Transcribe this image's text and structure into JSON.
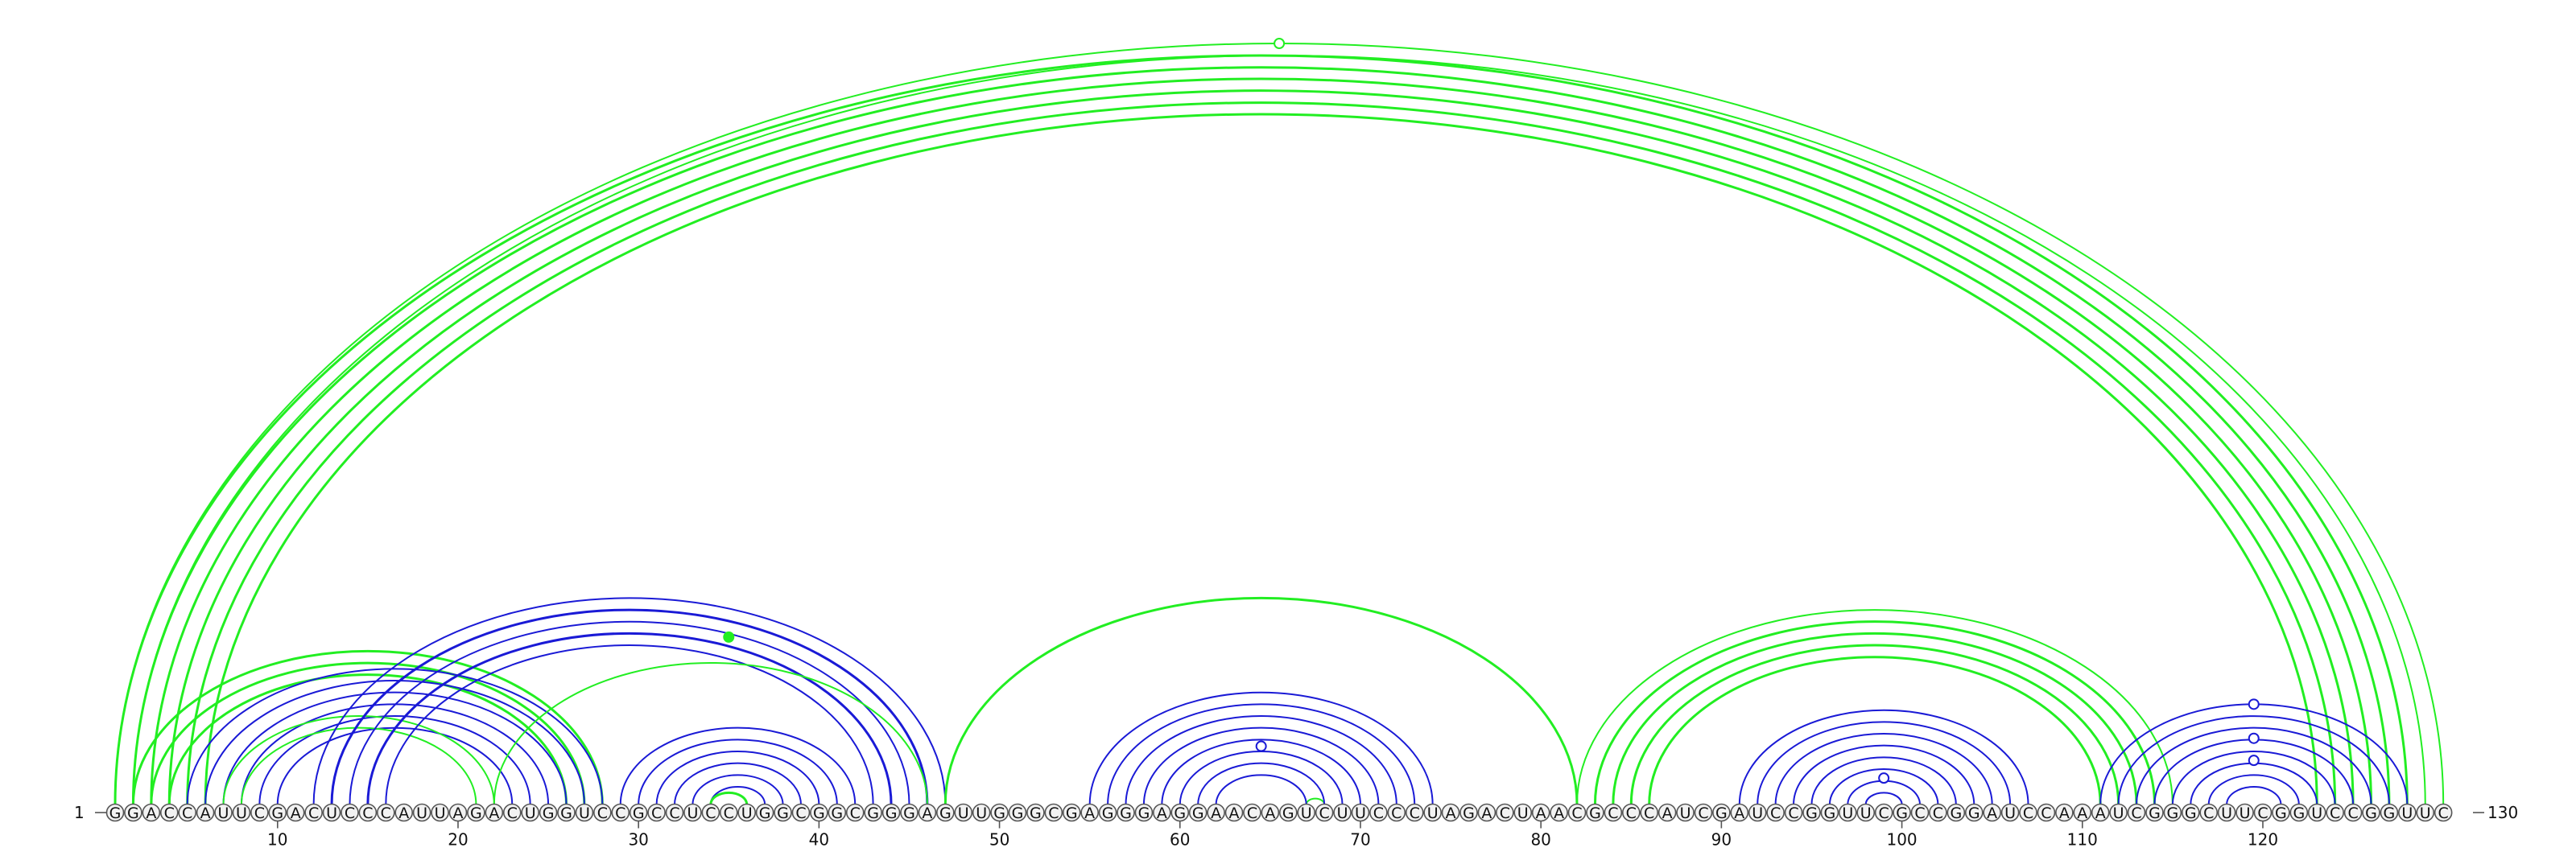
{
  "diagram": {
    "sequence": "GGACCAUUCGACUCCCAUUAGACUGGUCCGCCUCCUGGCGGCGGGAGUUGGGCGAGGGAGGAACAGUCUUCCCUAGACUAACGCCCAUCGAUCCGGUUCGCCGGAUCCAAAUCGGGCUUCGGUCCGGUUC",
    "length": 130,
    "start_label": "1",
    "end_label": "130",
    "ticks": [
      10,
      20,
      30,
      40,
      50,
      60,
      70,
      80,
      90,
      100,
      110,
      120
    ],
    "colors": {
      "blue": "#1a1ad6",
      "green": "#22ee22"
    },
    "arcs": [
      {
        "i": 1,
        "j": 128,
        "c": "green",
        "w": 3
      },
      {
        "i": 2,
        "j": 127,
        "c": "green",
        "w": 3
      },
      {
        "i": 3,
        "j": 126,
        "c": "green",
        "w": 3
      },
      {
        "i": 4,
        "j": 125,
        "c": "green",
        "w": 3
      },
      {
        "i": 5,
        "j": 124,
        "c": "green",
        "w": 3
      },
      {
        "i": 6,
        "j": 123,
        "c": "green",
        "w": 3
      },
      {
        "i": 1,
        "j": 130,
        "c": "green",
        "w": 2
      },
      {
        "i": 2,
        "j": 129,
        "c": "green",
        "w": 2
      },
      {
        "i": 2,
        "j": 28,
        "c": "green",
        "w": 3
      },
      {
        "i": 3,
        "j": 27,
        "c": "green",
        "w": 3
      },
      {
        "i": 4,
        "j": 26,
        "c": "green",
        "w": 3
      },
      {
        "i": 5,
        "j": 28,
        "c": "blue",
        "w": 2
      },
      {
        "i": 6,
        "j": 27,
        "c": "blue",
        "w": 2
      },
      {
        "i": 7,
        "j": 26,
        "c": "blue",
        "w": 2
      },
      {
        "i": 8,
        "j": 25,
        "c": "blue",
        "w": 2
      },
      {
        "i": 9,
        "j": 24,
        "c": "blue",
        "w": 2
      },
      {
        "i": 10,
        "j": 23,
        "c": "blue",
        "w": 2
      },
      {
        "i": 7,
        "j": 22,
        "c": "green",
        "w": 2
      },
      {
        "i": 8,
        "j": 21,
        "c": "green",
        "w": 2
      },
      {
        "i": 12,
        "j": 47,
        "c": "blue",
        "w": 2
      },
      {
        "i": 13,
        "j": 46,
        "c": "blue",
        "w": 3
      },
      {
        "i": 14,
        "j": 45,
        "c": "blue",
        "w": 2
      },
      {
        "i": 15,
        "j": 44,
        "c": "blue",
        "w": 3
      },
      {
        "i": 16,
        "j": 43,
        "c": "blue",
        "w": 2
      },
      {
        "i": 22,
        "j": 46,
        "c": "green",
        "w": 2
      },
      {
        "i": 29,
        "j": 42,
        "c": "blue",
        "w": 2
      },
      {
        "i": 30,
        "j": 41,
        "c": "blue",
        "w": 2
      },
      {
        "i": 31,
        "j": 40,
        "c": "blue",
        "w": 2
      },
      {
        "i": 32,
        "j": 39,
        "c": "blue",
        "w": 2
      },
      {
        "i": 33,
        "j": 38,
        "c": "blue",
        "w": 2
      },
      {
        "i": 34,
        "j": 37,
        "c": "blue",
        "w": 2
      },
      {
        "i": 34,
        "j": 36,
        "c": "green",
        "w": 3
      },
      {
        "i": 47,
        "j": 82,
        "c": "green",
        "w": 3
      },
      {
        "i": 67,
        "j": 68,
        "c": "green",
        "w": 2
      },
      {
        "i": 55,
        "j": 74,
        "c": "blue",
        "w": 2
      },
      {
        "i": 56,
        "j": 73,
        "c": "blue",
        "w": 2
      },
      {
        "i": 57,
        "j": 72,
        "c": "blue",
        "w": 2
      },
      {
        "i": 58,
        "j": 71,
        "c": "blue",
        "w": 2
      },
      {
        "i": 59,
        "j": 70,
        "c": "blue",
        "w": 2
      },
      {
        "i": 60,
        "j": 69,
        "c": "blue",
        "w": 2
      },
      {
        "i": 61,
        "j": 68,
        "c": "blue",
        "w": 2
      },
      {
        "i": 62,
        "j": 67,
        "c": "blue",
        "w": 2
      },
      {
        "i": 82,
        "j": 115,
        "c": "green",
        "w": 2
      },
      {
        "i": 83,
        "j": 114,
        "c": "green",
        "w": 3
      },
      {
        "i": 84,
        "j": 113,
        "c": "green",
        "w": 3
      },
      {
        "i": 85,
        "j": 112,
        "c": "green",
        "w": 3
      },
      {
        "i": 86,
        "j": 111,
        "c": "green",
        "w": 3
      },
      {
        "i": 91,
        "j": 107,
        "c": "blue",
        "w": 2
      },
      {
        "i": 92,
        "j": 106,
        "c": "blue",
        "w": 2
      },
      {
        "i": 93,
        "j": 105,
        "c": "blue",
        "w": 2
      },
      {
        "i": 94,
        "j": 104,
        "c": "blue",
        "w": 2
      },
      {
        "i": 95,
        "j": 103,
        "c": "blue",
        "w": 2
      },
      {
        "i": 96,
        "j": 102,
        "c": "blue",
        "w": 2
      },
      {
        "i": 97,
        "j": 101,
        "c": "blue",
        "w": 2
      },
      {
        "i": 98,
        "j": 100,
        "c": "blue",
        "w": 2
      },
      {
        "i": 111,
        "j": 128,
        "c": "blue",
        "w": 2
      },
      {
        "i": 112,
        "j": 127,
        "c": "blue",
        "w": 2
      },
      {
        "i": 113,
        "j": 126,
        "c": "blue",
        "w": 2
      },
      {
        "i": 114,
        "j": 125,
        "c": "blue",
        "w": 2
      },
      {
        "i": 115,
        "j": 124,
        "c": "blue",
        "w": 2
      },
      {
        "i": 116,
        "j": 123,
        "c": "blue",
        "w": 2
      },
      {
        "i": 117,
        "j": 122,
        "c": "blue",
        "w": 2
      },
      {
        "i": 118,
        "j": 121,
        "c": "blue",
        "w": 2
      }
    ],
    "markers": [
      {
        "pos": 65.5,
        "level": 1.0,
        "c": "green",
        "filled": false
      },
      {
        "pos": 35,
        "level": 0.22,
        "c": "green",
        "filled": true
      },
      {
        "pos": 64.5,
        "level": 0.52,
        "c": "blue",
        "filled": false
      },
      {
        "pos": 99,
        "level": 0.28,
        "c": "blue",
        "filled": false
      },
      {
        "pos": 119.5,
        "level": 0.44,
        "c": "blue",
        "filled": false
      },
      {
        "pos": 119.5,
        "level": 0.66,
        "c": "blue",
        "filled": false
      },
      {
        "pos": 119.5,
        "level": 1.0,
        "c": "blue",
        "filled": false
      }
    ]
  }
}
